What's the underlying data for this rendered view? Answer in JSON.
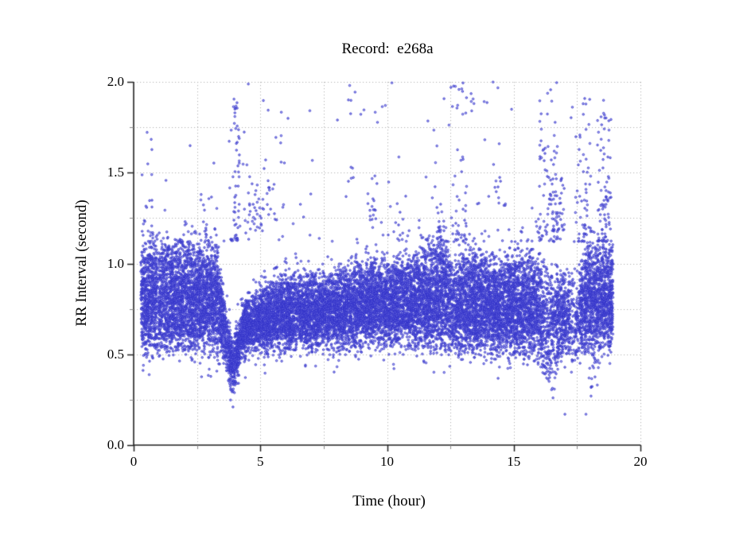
{
  "chart_data": {
    "type": "scatter",
    "title": "Record:  e268a",
    "xlabel": "Time (hour)",
    "ylabel": "RR Interval (second)",
    "xlim": [
      0,
      20
    ],
    "ylim": [
      0.0,
      2.0
    ],
    "x_ticks": {
      "values": [
        0,
        5,
        10,
        15,
        20
      ],
      "labels": [
        "0",
        "5",
        "10",
        "15",
        "20"
      ],
      "minor_step": 2.5
    },
    "y_ticks": {
      "values": [
        0,
        0.5,
        1.0,
        1.5,
        2.0
      ],
      "labels": [
        "0.0",
        "0.5",
        "1.0",
        "1.5",
        "2.0"
      ],
      "minor_step": 0.25
    },
    "grid": {
      "style": "dotted",
      "color": "#b3b3b3",
      "on_minor": true
    },
    "axis_color": "#222222",
    "minor_tick_color": "#8a8a8a",
    "legend": "none",
    "marker": {
      "shape": "open-circle",
      "radius_px": 1.25,
      "stroke": "rgba(48,48,200,0.95)",
      "fill": "rgba(118,118,230,0.55)"
    },
    "seed": 42,
    "time_range": [
      0.28,
      18.92
    ],
    "band_mix": {
      "central_frac": 0.6,
      "center_pos": 0.45,
      "sigma_frac": 0.26,
      "edge_jitter_bottom": 0.015,
      "edge_jitter_top": 0.02
    },
    "streaks": {
      "prob": 0.45,
      "spacing": 0.08,
      "jitter": 0.012
    },
    "band_profile": [
      [
        0.28,
        0.58,
        1.1,
        950
      ],
      [
        0.6,
        0.58,
        1.1,
        1000
      ],
      [
        3.3,
        0.57,
        1.07,
        1000
      ],
      [
        3.5,
        0.52,
        0.88,
        750
      ],
      [
        3.7,
        0.44,
        0.68,
        650
      ],
      [
        3.92,
        0.33,
        0.56,
        650
      ],
      [
        4.1,
        0.44,
        0.66,
        700
      ],
      [
        4.35,
        0.54,
        0.77,
        800
      ],
      [
        5.0,
        0.56,
        0.84,
        850
      ],
      [
        5.7,
        0.57,
        0.9,
        900
      ],
      [
        6.5,
        0.58,
        0.93,
        900
      ],
      [
        7.5,
        0.58,
        0.91,
        900
      ],
      [
        8.5,
        0.59,
        0.96,
        900
      ],
      [
        9.3,
        0.6,
        1.0,
        900
      ],
      [
        10.2,
        0.6,
        0.98,
        900
      ],
      [
        11.0,
        0.6,
        1.02,
        920
      ],
      [
        11.6,
        0.58,
        1.09,
        950
      ],
      [
        12.35,
        0.58,
        1.1,
        950
      ],
      [
        12.6,
        0.57,
        0.94,
        600
      ],
      [
        12.85,
        0.56,
        1.0,
        900
      ],
      [
        13.4,
        0.56,
        1.06,
        950
      ],
      [
        14.3,
        0.56,
        0.99,
        950
      ],
      [
        15.3,
        0.55,
        1.04,
        950
      ],
      [
        15.95,
        0.53,
        1.0,
        800
      ],
      [
        16.2,
        0.46,
        0.97,
        550
      ],
      [
        16.42,
        0.46,
        0.9,
        280
      ],
      [
        16.65,
        0.52,
        0.93,
        650
      ],
      [
        17.05,
        0.55,
        0.92,
        700
      ],
      [
        17.22,
        0.55,
        0.88,
        250
      ],
      [
        17.32,
        0.52,
        0.9,
        300
      ],
      [
        17.45,
        0.55,
        0.82,
        100
      ],
      [
        17.62,
        0.55,
        0.96,
        650
      ],
      [
        17.85,
        0.57,
        1.06,
        900
      ],
      [
        18.25,
        0.57,
        1.1,
        950
      ],
      [
        18.92,
        0.58,
        1.06,
        900
      ]
    ],
    "band_gaps": [
      [
        0.94,
        0.975,
        0.85
      ],
      [
        1.135,
        1.165,
        0.8
      ]
    ],
    "edge_fringe": {
      "below_per_hour": 45,
      "below_spread": 0.045,
      "above_per_hour": 22,
      "above_spread": 0.05
    },
    "upper_scatter": {
      "per_hour": 8,
      "y_range": [
        1.12,
        2.0
      ],
      "power": 2.0,
      "columns": [
        [
          0.3,
          0.75,
          10,
          1.3,
          1.78
        ],
        [
          2.6,
          3.3,
          12,
          1.12,
          1.35
        ],
        [
          3.82,
          4.18,
          55,
          1.12,
          2.0
        ],
        [
          4.5,
          5.1,
          30,
          1.18,
          1.48
        ],
        [
          5.25,
          5.65,
          13,
          1.22,
          1.46
        ],
        [
          5.75,
          6.05,
          5,
          1.55,
          2.0
        ],
        [
          8.45,
          8.75,
          10,
          1.45,
          2.0
        ],
        [
          9.15,
          9.65,
          16,
          1.1,
          1.5
        ],
        [
          10.4,
          10.9,
          8,
          1.12,
          1.45
        ],
        [
          11.9,
          12.3,
          14,
          1.12,
          1.36
        ],
        [
          12.5,
          13.15,
          45,
          1.12,
          2.0
        ],
        [
          14.2,
          14.7,
          12,
          1.3,
          1.66
        ],
        [
          13.3,
          14.4,
          8,
          1.85,
          2.0
        ],
        [
          15.9,
          16.75,
          75,
          1.12,
          2.0
        ],
        [
          16.3,
          17.0,
          45,
          1.18,
          1.48
        ],
        [
          17.5,
          18.05,
          50,
          1.12,
          1.95
        ],
        [
          18.3,
          18.85,
          70,
          1.12,
          1.9
        ]
      ]
    },
    "lower_scatter": {
      "per_hour": 2.6,
      "y_range": [
        0.36,
        0.54
      ],
      "columns": [
        [
          0.35,
          1.05,
          8,
          0.35,
          0.5
        ],
        [
          3.78,
          4.15,
          28,
          0.22,
          0.5
        ],
        [
          16.2,
          16.75,
          24,
          0.3,
          0.52
        ],
        [
          17.95,
          18.35,
          18,
          0.3,
          0.52
        ]
      ]
    },
    "isolated_points": [
      [
        3.92,
        0.21
      ],
      [
        16.55,
        0.26
      ],
      [
        17.02,
        0.17
      ],
      [
        17.85,
        0.17
      ],
      [
        18.05,
        0.27
      ]
    ]
  }
}
